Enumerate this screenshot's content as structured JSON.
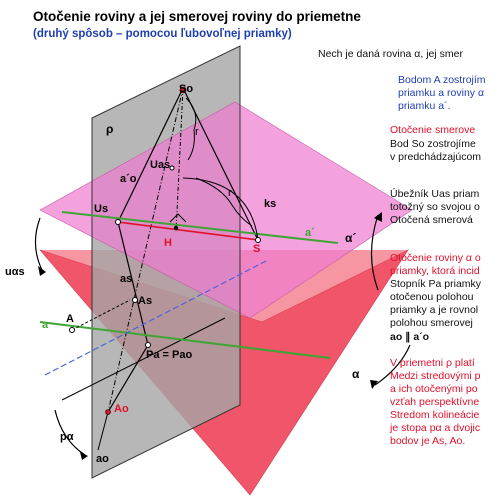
{
  "header": {
    "title": "Otočenie roviny a jej smerovej roviny do priemetne",
    "subtitle": "(druhý spôsob – pomocou ľubovoľnej priamky)"
  },
  "text": {
    "intro": "Nech je daná rovina α, jej smer",
    "blue_block": [
      "Bodom A zostrojím",
      "priamku a roviny α",
      "priamku a´."
    ],
    "red_block_1": "Otočenie smerove",
    "black_block_1": [
      "Bod So zostrojíme",
      "v predchádzajúcom"
    ],
    "black_block_2": [
      "Úbežník Uas priam",
      "totožný so svojou o",
      "Otočená smerová"
    ],
    "red_block_2": [
      "Otočenie roviny α o",
      "priamky, ktorá incid"
    ],
    "black_block_3": [
      "Stopník Pa priamky",
      "otočenou polohou",
      "priamky a je rovnol",
      "polohou smerovej",
      "ao ∥ a´o"
    ],
    "red_block_3": [
      "V priemetni ρ platí",
      "Medzi stredovými p",
      "a ich otočenými po",
      "vzťah perspektívne",
      "Stredom kolineácie",
      "je stopa pα a dvojic",
      "bodov je As, Ao."
    ]
  },
  "labels": {
    "So": "So",
    "rho": "ρ",
    "r_upper": "r",
    "r_lower": "r",
    "a_prime_o": "a´o",
    "Us": "Us",
    "Uas": "Uas",
    "ks": "ks",
    "H": "H",
    "S": "S",
    "a_prime": "a´",
    "alpha_prime": "α´",
    "u_alpha_s": "uαs",
    "a_s": "as",
    "As": "As",
    "a": "a",
    "A": "A",
    "Pa_eq": "Pa = Pao",
    "alpha": "α",
    "p_alpha": "pα",
    "Ao": "Ao",
    "a_o": "ao"
  },
  "colors": {
    "title": "#000000",
    "subtitle_blue": "#1f3fb0",
    "red_text": "#e0102a",
    "plane_rho": "#9a9a9a",
    "plane_alpha_prime": "#f07ad0",
    "plane_alpha": "#f0566a",
    "green_line": "#3fa535",
    "blue_line": "#4a60e0"
  }
}
